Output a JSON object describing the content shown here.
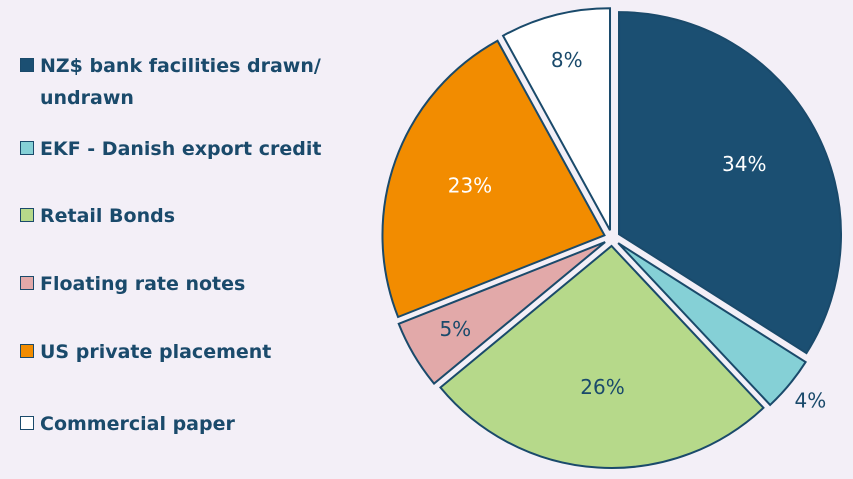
{
  "chart_data": {
    "type": "pie",
    "categories": [
      "NZ$ bank facilities drawn/ undrawn",
      "EKF - Danish export credit",
      "Retail Bonds",
      "Floating rate notes",
      "US private placement",
      "Commercial paper"
    ],
    "values": [
      34,
      4,
      26,
      5,
      23,
      8
    ],
    "value_labels": [
      "34%",
      "4%",
      "26%",
      "5%",
      "23%",
      "8%"
    ],
    "colors": [
      "#1b4f72",
      "#85d0d6",
      "#b6d98a",
      "#e2a9a9",
      "#f28c00",
      "#ffffff"
    ],
    "legend": "left"
  }
}
